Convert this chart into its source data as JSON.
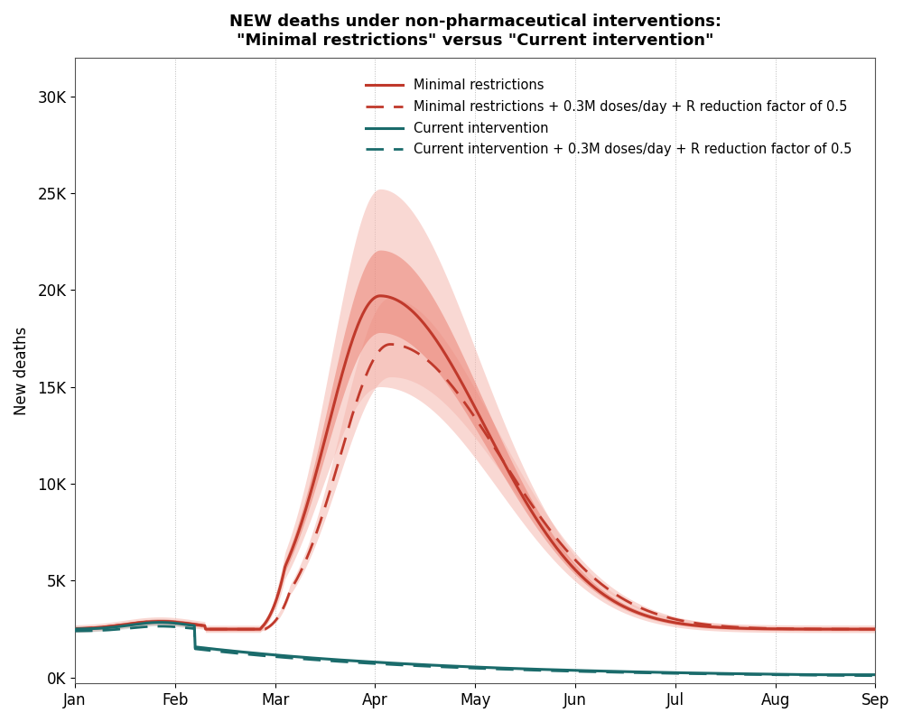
{
  "title": "NEW deaths under non-pharmaceutical interventions:\n\"Minimal restrictions\" versus \"Current intervention\"",
  "ylabel": "New deaths",
  "xlabel": "",
  "yticks": [
    0,
    5000,
    10000,
    15000,
    20000,
    25000,
    30000
  ],
  "ytick_labels": [
    "0K",
    "5K",
    "10K",
    "15K",
    "20K",
    "25K",
    "30K"
  ],
  "xtick_labels": [
    "Jan",
    "Feb",
    "Mar",
    "Apr",
    "May",
    "Jun",
    "Jul",
    "Aug",
    "Sep"
  ],
  "color_red": "#c0392b",
  "color_teal": "#1a6b6b",
  "color_red_fill_outer": "#f5b8b0",
  "color_red_fill_inner": "#e87060",
  "background_color": "#ffffff",
  "grid_color": "#aaaaaa",
  "legend_entries": [
    "Minimal restrictions",
    "Minimal restrictions + 0.3M doses/day + R reduction factor of 0.5",
    "Current intervention",
    "Current intervention + 0.3M doses/day + R reduction factor of 0.5"
  ]
}
